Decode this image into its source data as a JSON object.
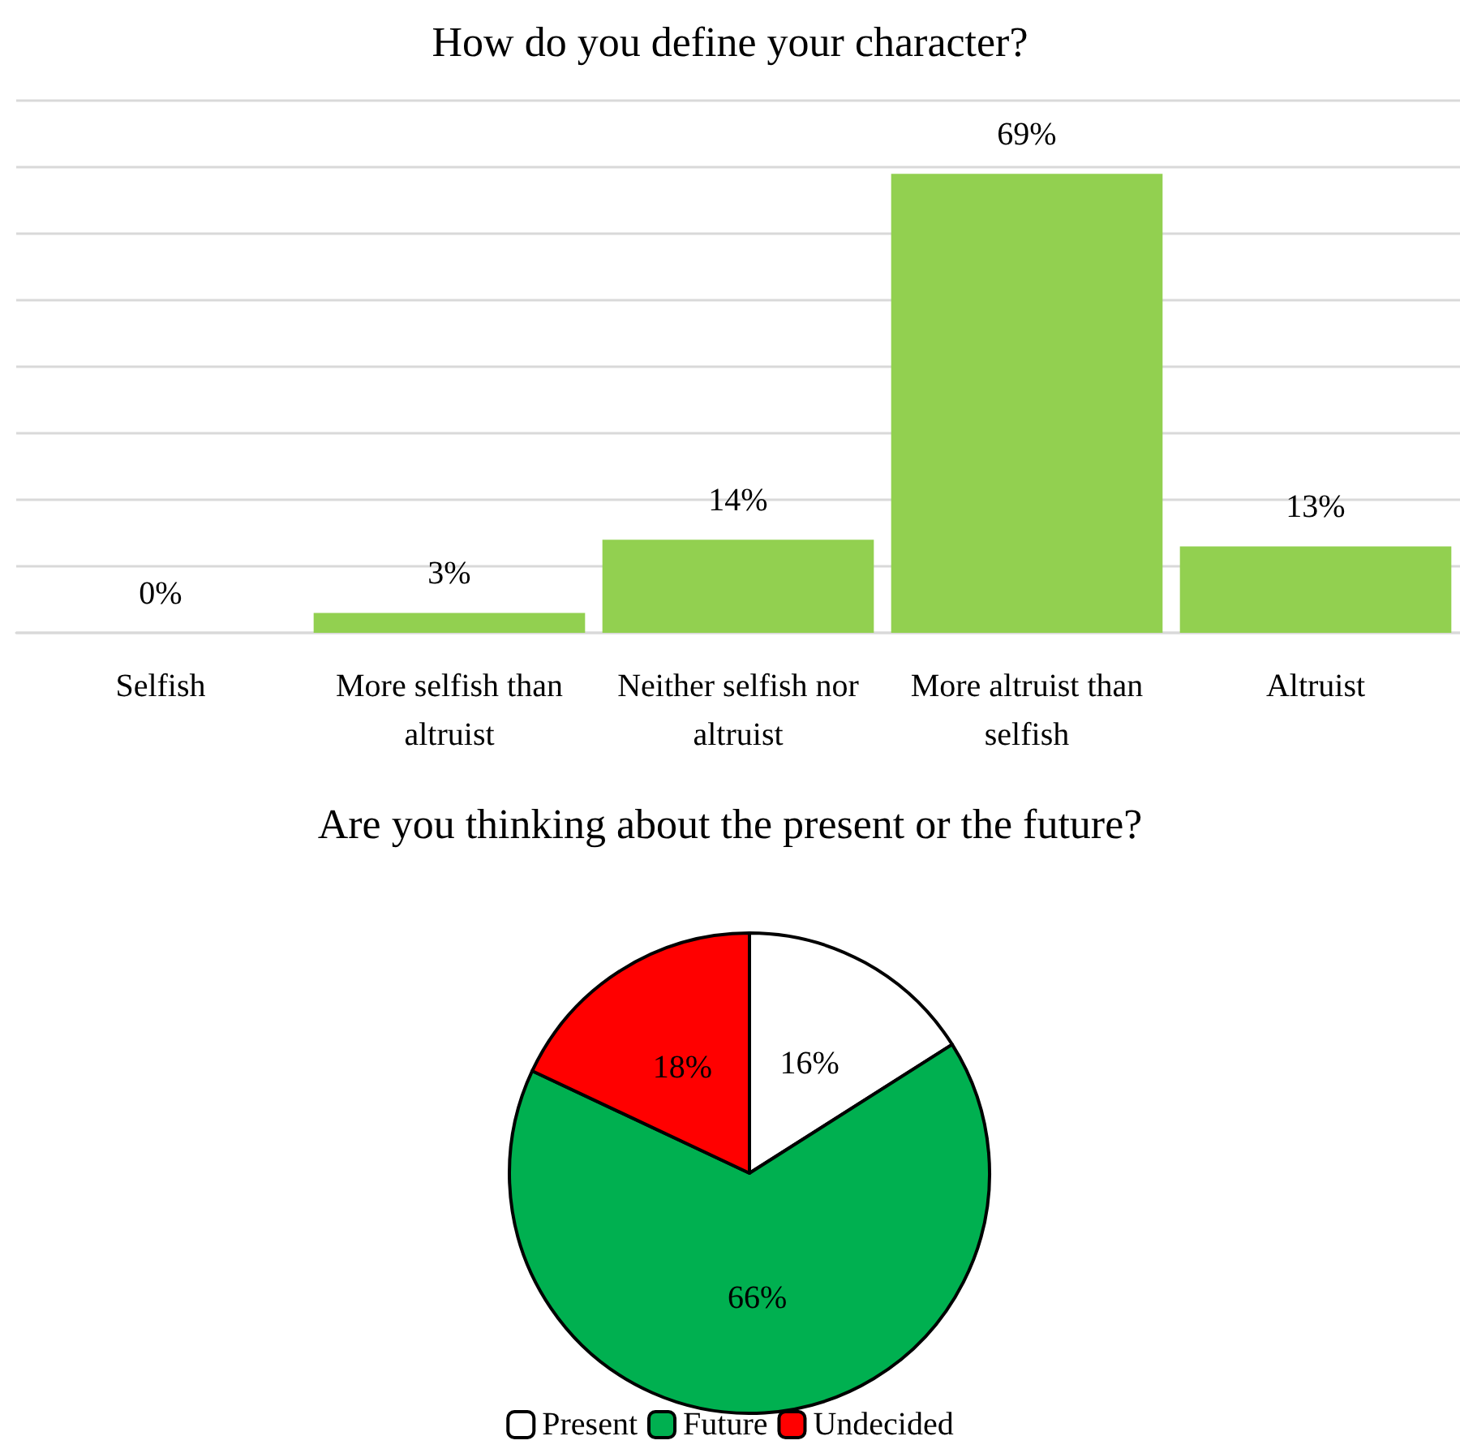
{
  "chart_data": [
    {
      "type": "bar",
      "title": "How do you define your character?",
      "categories": [
        "Selfish",
        "More selfish than altruist",
        "Neither selfish nor altruist",
        "More altruist than selfish",
        "Altruist"
      ],
      "values": [
        0,
        3,
        14,
        69,
        13
      ],
      "value_labels": [
        "0%",
        "3%",
        "14%",
        "69%",
        "13%"
      ],
      "color": "#92d050",
      "ylim": [
        0,
        80
      ],
      "yticks": [
        {
          "value": 0,
          "label": null
        },
        {
          "value": 10,
          "label": null
        },
        {
          "value": 20,
          "label": null
        },
        {
          "value": 30,
          "label": null
        },
        {
          "value": 40,
          "label": null
        },
        {
          "value": 50,
          "label": null
        },
        {
          "value": 60,
          "label": null
        },
        {
          "value": 70,
          "label": null
        },
        {
          "value": 80,
          "label": null
        }
      ],
      "grid": "y",
      "tick_labels": "x",
      "legend": false
    },
    {
      "type": "pie",
      "title": "Are you thinking about the present or the future?",
      "categories": [
        "Present",
        "Future",
        "Undecided"
      ],
      "values": [
        16,
        66,
        18
      ],
      "value_labels": [
        "16%",
        "66%",
        "18%"
      ],
      "colors": [
        "#ffffff",
        "#00b050",
        "#ff0000"
      ],
      "legend": "bottom"
    }
  ]
}
